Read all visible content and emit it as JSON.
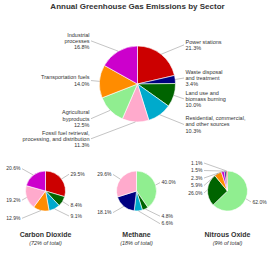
{
  "chart_data": [
    {
      "type": "pie",
      "title": "Annual Greenhouse Gas Emissions by Sector",
      "categories": [
        "Power stations",
        "Waste disposal\nand treatment",
        "Land use and\nbiomass burning",
        "Residential, commercial,\nand other sources",
        "Fossil fuel retrieval,\nprocessing, and distribution",
        "Agricultural\nbyproducts",
        "Transportation fuels",
        "Industrial\nprocesses"
      ],
      "values": [
        21.3,
        3.4,
        10.0,
        10.3,
        11.3,
        12.5,
        14.0,
        16.8
      ],
      "value_labels": [
        "21.3%",
        "3.4%",
        "10.0%",
        "10.3%",
        "11.3%",
        "12.5%",
        "14.0%",
        "16.8%"
      ],
      "colors": [
        "#cc0000",
        "#000080",
        "#006400",
        "#00aacc",
        "#ffaacc",
        "#90ee90",
        "#ff8c00",
        "#cc00cc"
      ],
      "data_labels": true
    },
    {
      "type": "pie",
      "title": "Carbon Dioxide",
      "subtitle": "(72% of total)",
      "values": [
        29.5,
        8.4,
        9.1,
        12.9,
        19.2,
        20.6
      ],
      "value_labels": [
        "29.5%",
        "8.4%",
        "9.1%",
        "12.9%",
        "19.2%",
        "20.6%"
      ],
      "colors": [
        "#cc0000",
        "#006400",
        "#00aacc",
        "#ff8c00",
        "#ffaacc",
        "#cc00cc"
      ],
      "data_labels": true
    },
    {
      "type": "pie",
      "title": "Methane",
      "subtitle": "(18% of total)",
      "values": [
        40.0,
        4.8,
        6.6,
        18.1,
        29.6
      ],
      "value_labels": [
        "40.0%",
        "4.8%",
        "6.6%",
        "18.1%",
        "29.6%"
      ],
      "colors": [
        "#90ee90",
        "#006400",
        "#00aacc",
        "#000080",
        "#ffaacc"
      ],
      "data_labels": true
    },
    {
      "type": "pie",
      "title": "Nitrous Oxide",
      "subtitle": "(9% of total)",
      "values": [
        62.0,
        26.0,
        5.9,
        2.3,
        1.5,
        1.1
      ],
      "value_labels": [
        "62.0%",
        "26.0%",
        "5.9%",
        "2.3%",
        "1.5%",
        "1.1%"
      ],
      "colors": [
        "#90ee90",
        "#006400",
        "#ff8c00",
        "#cc00cc",
        "#000080",
        "#cc0000"
      ],
      "data_labels": true
    }
  ]
}
